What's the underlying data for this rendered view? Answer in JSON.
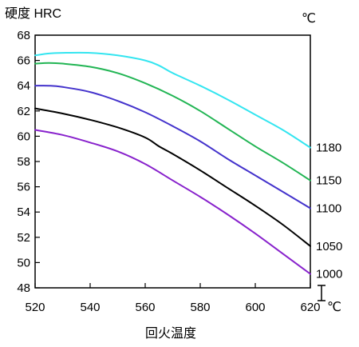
{
  "chart_data": {
    "type": "line",
    "ylabel": "硬度 HRC",
    "xlabel": "回火温度",
    "x_unit": "℃",
    "series_unit": "℃",
    "xlim": [
      520,
      620
    ],
    "ylim": [
      48,
      68
    ],
    "x_ticks": [
      520,
      540,
      560,
      580,
      600,
      620
    ],
    "y_ticks": [
      48,
      50,
      52,
      54,
      56,
      58,
      60,
      62,
      64,
      66,
      68
    ],
    "grid": false,
    "legend": "right (series labels at line ends)",
    "series": [
      {
        "name": "1180",
        "color": "#33e5f0",
        "x": [
          520,
          525,
          530,
          540,
          550,
          560,
          565,
          570,
          580,
          590,
          600,
          610,
          620
        ],
        "y": [
          66.4,
          66.55,
          66.6,
          66.6,
          66.4,
          66.0,
          65.6,
          65.0,
          64.0,
          62.9,
          61.7,
          60.5,
          59.1
        ]
      },
      {
        "name": "1150",
        "color": "#22b554",
        "x": [
          520,
          525,
          530,
          540,
          550,
          560,
          570,
          580,
          590,
          600,
          610,
          620
        ],
        "y": [
          65.75,
          65.8,
          65.75,
          65.5,
          65.0,
          64.2,
          63.2,
          62.0,
          60.6,
          59.2,
          57.9,
          56.5
        ]
      },
      {
        "name": "1100",
        "color": "#4433cc",
        "x": [
          520,
          525,
          530,
          540,
          550,
          560,
          570,
          580,
          590,
          600,
          610,
          620
        ],
        "y": [
          64.0,
          64.0,
          63.9,
          63.5,
          62.8,
          61.9,
          60.8,
          59.6,
          58.2,
          56.9,
          55.6,
          54.3
        ]
      },
      {
        "name": "1050",
        "color": "#000000",
        "x": [
          520,
          530,
          540,
          550,
          560,
          565,
          570,
          580,
          590,
          600,
          610,
          620
        ],
        "y": [
          62.2,
          61.8,
          61.3,
          60.7,
          59.9,
          59.2,
          58.6,
          57.3,
          55.9,
          54.5,
          53.0,
          51.3
        ]
      },
      {
        "name": "1000",
        "color": "#8822cc",
        "x": [
          520,
          530,
          540,
          550,
          560,
          570,
          580,
          590,
          600,
          610,
          620
        ],
        "y": [
          60.5,
          60.1,
          59.5,
          58.8,
          57.8,
          56.5,
          55.2,
          53.8,
          52.3,
          50.7,
          49.1
        ]
      }
    ]
  }
}
